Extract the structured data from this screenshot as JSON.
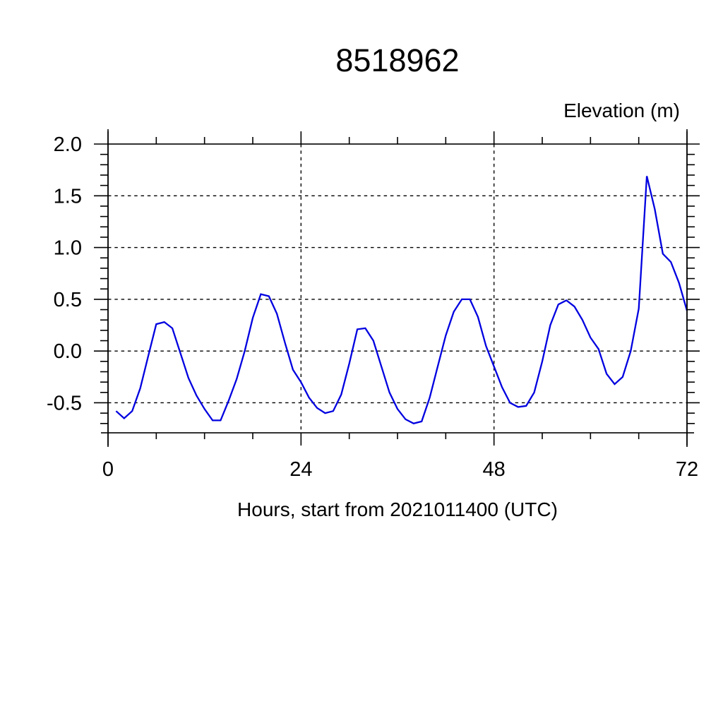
{
  "title": "8518962",
  "chart_data": {
    "type": "line",
    "title": "8518962",
    "xlabel": "Hours, start from 2021011400 (UTC)",
    "ylabel": "Elevation (m)",
    "xlim": [
      0,
      72
    ],
    "ylim": [
      -0.79,
      2.0
    ],
    "xticks": [
      0,
      24,
      48,
      72
    ],
    "xtick_labels": [
      "0",
      "24",
      "48",
      "72"
    ],
    "x_minor_interval": 6,
    "yticks": [
      -0.5,
      0.0,
      0.5,
      1.0,
      1.5,
      2.0
    ],
    "ytick_labels": [
      "-0.5",
      "0.0",
      "0.5",
      "1.0",
      "1.5",
      "2.0"
    ],
    "y_minor_interval": 0.1,
    "grid": "dashed",
    "legend": "none",
    "line_color": "#0000E0",
    "frame_color": "#000000",
    "background": "#FFFFFF",
    "x": [
      1,
      2,
      3,
      4,
      5,
      6,
      7,
      8,
      9,
      10,
      11,
      12,
      13,
      14,
      15,
      16,
      17,
      18,
      19,
      20,
      21,
      22,
      23,
      24,
      25,
      26,
      27,
      28,
      29,
      30,
      31,
      32,
      33,
      34,
      35,
      36,
      37,
      38,
      39,
      40,
      41,
      42,
      43,
      44,
      45,
      46,
      47,
      48,
      49,
      50,
      51,
      52,
      53,
      54,
      55,
      56,
      57,
      58,
      59,
      60,
      61,
      62,
      63,
      64,
      65,
      66,
      67,
      68,
      69,
      70,
      71,
      72
    ],
    "values": [
      -0.58,
      -0.65,
      -0.58,
      -0.36,
      -0.05,
      0.26,
      0.28,
      0.22,
      -0.02,
      -0.26,
      -0.43,
      -0.56,
      -0.67,
      -0.67,
      -0.48,
      -0.27,
      0.0,
      0.32,
      0.55,
      0.53,
      0.36,
      0.08,
      -0.18,
      -0.3,
      -0.45,
      -0.55,
      -0.6,
      -0.58,
      -0.42,
      -0.12,
      0.21,
      0.22,
      0.1,
      -0.15,
      -0.4,
      -0.56,
      -0.66,
      -0.7,
      -0.68,
      -0.45,
      -0.15,
      0.15,
      0.38,
      0.5,
      0.5,
      0.33,
      0.05,
      -0.15,
      -0.35,
      -0.5,
      -0.54,
      -0.53,
      -0.4,
      -0.1,
      0.25,
      0.45,
      0.49,
      0.43,
      0.3,
      0.13,
      0.02,
      -0.22,
      -0.32,
      -0.25,
      0.0,
      0.41,
      1.69,
      1.37,
      0.94,
      0.86,
      0.66,
      0.39
    ]
  }
}
